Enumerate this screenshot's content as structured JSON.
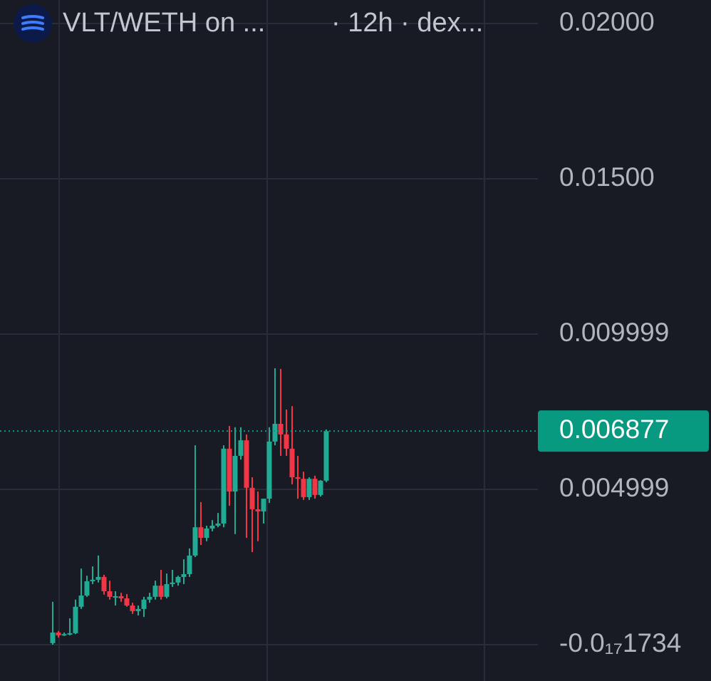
{
  "chart_data": {
    "type": "candlestick",
    "title": "VLT/WETH on ...",
    "subtitle": "· 12h · dex...",
    "up_color": "#22ab94",
    "down_color": "#f23645",
    "grid": true,
    "ylim": [
      -0.00117,
      0.020757
    ],
    "yticks": [
      {
        "value": 0.02,
        "label": "0.02000"
      },
      {
        "value": 0.015,
        "label": "0.01500"
      },
      0.009999,
      0.004999,
      {
        "value": -1.734e-18,
        "label": "-0.0₁₇1734"
      }
    ],
    "last_price": 0.006877,
    "last_price_color": "#089981",
    "categories": [
      null,
      null,
      null,
      null,
      null,
      null,
      null,
      null,
      null,
      null,
      null,
      null,
      null,
      null,
      null,
      null,
      null,
      null,
      null,
      null,
      null,
      null,
      null,
      null,
      null,
      null,
      null,
      null,
      null,
      null,
      null,
      null,
      null,
      null,
      null,
      null,
      null,
      null,
      null,
      null,
      null,
      null,
      null,
      null,
      null,
      null,
      null,
      null,
      null
    ],
    "open": [
      5e-05,
      0.00039,
      0.00032,
      0.00034,
      0.00037,
      0.00122,
      0.00158,
      0.00204,
      0.00209,
      0.00218,
      0.00172,
      0.00154,
      0.00156,
      0.00149,
      0.00126,
      0.00108,
      0.00115,
      0.00145,
      0.00154,
      0.0019,
      0.00154,
      0.00195,
      0.002,
      0.00218,
      0.00227,
      0.00287,
      0.00378,
      0.00344,
      0.00374,
      0.00383,
      0.0039,
      0.00631,
      0.00493,
      0.00608,
      0.00658,
      0.00505,
      0.00436,
      0.00429,
      0.0047,
      0.00654,
      0.00711,
      0.00677,
      0.00631,
      0.00539,
      0.00534,
      0.00475,
      0.00534,
      0.00482,
      0.00528
    ],
    "high": [
      0.00138,
      0.00044,
      0.00039,
      0.00085,
      0.00145,
      0.00245,
      0.00222,
      0.00252,
      0.00287,
      0.00225,
      0.00206,
      0.00172,
      0.00167,
      0.00163,
      0.00135,
      0.00126,
      0.00154,
      0.00167,
      0.00206,
      0.00241,
      0.00229,
      0.00241,
      0.00222,
      0.00275,
      0.0031,
      0.00642,
      0.00459,
      0.00383,
      0.00401,
      0.00424,
      0.00642,
      0.00704,
      0.007,
      0.007,
      0.00677,
      0.00539,
      0.00493,
      0.0047,
      0.007,
      0.0089,
      0.00888,
      0.00757,
      0.00768,
      0.00608,
      0.00557,
      0.00539,
      0.00544,
      0.0053,
      0.00693
    ],
    "low": [
      0,
      0.00023,
      0.00028,
      0.0003,
      0.00034,
      0.00115,
      0.00154,
      0.00195,
      0.002,
      0.00161,
      0.00145,
      0.00126,
      0.00138,
      0.00122,
      0.00099,
      0.00094,
      0.00089,
      0.00135,
      0.00145,
      0.00145,
      0.00149,
      0.00186,
      0.0019,
      0.00195,
      0.00218,
      0.00282,
      0.00321,
      0.00333,
      0.00365,
      0.00378,
      0.00378,
      0.00447,
      0.00356,
      0.00596,
      0.00344,
      0.00298,
      0.00333,
      0.0039,
      0.00456,
      0.00642,
      0.00608,
      0.00608,
      0.00516,
      0.0047,
      0.00466,
      0.00466,
      0.0047,
      0.00477,
      0.00523
    ],
    "close": [
      0.00039,
      0.0003,
      0.00034,
      0.00037,
      0.00122,
      0.00158,
      0.00204,
      0.00209,
      0.00218,
      0.00172,
      0.00154,
      0.00156,
      0.00149,
      0.00126,
      0.00108,
      0.00115,
      0.00145,
      0.00154,
      0.0019,
      0.00154,
      0.00195,
      0.002,
      0.00218,
      0.00227,
      0.00287,
      0.00378,
      0.00344,
      0.00374,
      0.00383,
      0.0039,
      0.00631,
      0.00493,
      0.00608,
      0.00658,
      0.00505,
      0.00436,
      0.00429,
      0.0047,
      0.00654,
      0.00711,
      0.00677,
      0.00631,
      0.00539,
      0.00534,
      0.00475,
      0.00534,
      0.00482,
      0.00528,
      0.006877
    ]
  }
}
